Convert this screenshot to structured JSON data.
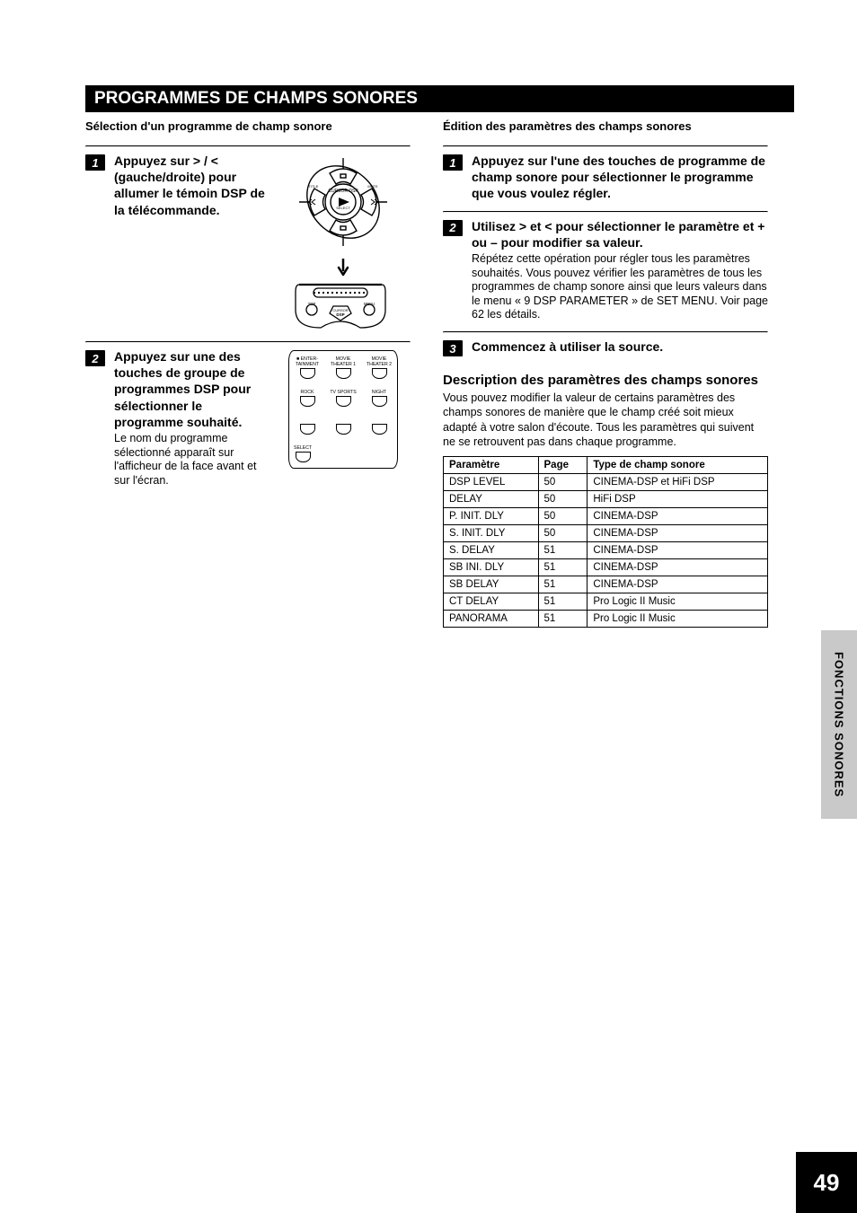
{
  "title_bar": "PROGRAMMES DE CHAMPS SONORES",
  "subtitle_left": "Sélection d'un programme de champ sonore",
  "subtitle_right": "Édition des paramètres des champs sonores",
  "left": {
    "steps": [
      {
        "num": "1",
        "head_pre": "Appuyez sur ",
        "head_g1": "a",
        "head_mid": " / ",
        "head_g2": "b",
        "head_post": " (gauche/droite) pour allumer le témoin DSP de la télécommande.",
        "sub": ""
      },
      {
        "num": "2",
        "head_pre": "Appuyez sur une des touches de groupe de programmes DSP pour sélectionner le programme souhaité.",
        "head_g1": "",
        "head_mid": "",
        "head_g2": "",
        "head_post": "",
        "sub": "Le nom du programme sélectionné apparaît sur l'afficheur de la face avant et sur l'écran."
      }
    ],
    "dsp_labels": [
      "■ ENTER-\nTAINMENT",
      "MOVIE\nTHEATER 1",
      "MOVIE\nTHEATER 2",
      "ROCK",
      "TV SPORTS",
      "NIGHT",
      "",
      "",
      "",
      "SELECT"
    ]
  },
  "right_steps": [
    {
      "num": "1",
      "head": "Appuyez sur l'une des touches de programme de champ sonore pour sélectionner le programme que vous voulez régler.",
      "sub": ""
    },
    {
      "num": "2",
      "head_pre": "Utilisez ",
      "head_g1": "a",
      "head_mid": " et ",
      "head_g2": "b",
      "head_post": " pour sélectionner le paramètre et + ou – pour modifier sa valeur.",
      "sub": "Répétez cette opération pour régler tous les paramètres souhaités. Vous pouvez vérifier les paramètres de tous les programmes de champ sonore ainsi que leurs valeurs dans le menu « 9 DSP PARAMETER » de SET MENU. Voir page 62 les détails."
    },
    {
      "num": "3",
      "head": "Commencez à utiliser la source.",
      "sub": ""
    }
  ],
  "desc_head": "Description des paramètres des champs sonores",
  "desc_body": "Vous pouvez modifier la valeur de certains paramètres des champs sonores de manière que le champ créé soit mieux adapté à votre salon d'écoute. Tous les paramètres qui suivent ne se retrouvent pas dans chaque programme.",
  "table": {
    "cols": [
      "Paramètre",
      "Page",
      "Type de champ sonore"
    ],
    "rows": [
      [
        "DSP LEVEL",
        "50",
        "CINEMA-DSP et HiFi DSP"
      ],
      [
        "DELAY",
        "50",
        "HiFi DSP"
      ],
      [
        "P. INIT. DLY",
        "50",
        "CINEMA-DSP"
      ],
      [
        "S. INIT. DLY",
        "50",
        "CINEMA-DSP"
      ],
      [
        "S. DELAY",
        "51",
        "CINEMA-DSP"
      ],
      [
        "SB INI. DLY",
        "51",
        "CINEMA-DSP"
      ],
      [
        "SB DELAY",
        "51",
        "CINEMA-DSP"
      ],
      [
        "CT DELAY",
        "51",
        "Pro Logic II Music"
      ],
      [
        "PANORAMA",
        "51",
        "Pro Logic II Music"
      ]
    ]
  },
  "side_tab": "FONCTIONS SONORES",
  "page_number": "49",
  "colors": {
    "black": "#000000",
    "white": "#ffffff",
    "grey": "#c9c9c9"
  }
}
